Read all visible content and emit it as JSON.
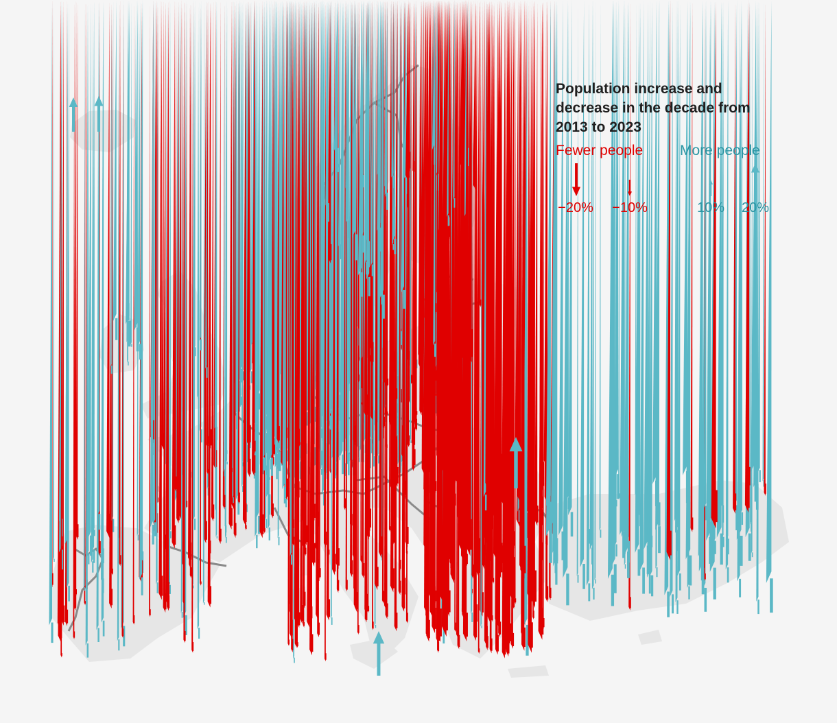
{
  "legend": {
    "title": "Population increase and decrease in the decade from 2013 to 2023",
    "fewer_label": "Fewer people",
    "more_label": "More people",
    "scale": [
      {
        "label": "−20%",
        "value": -20
      },
      {
        "label": "−10%",
        "value": -10
      },
      {
        "label": "10%",
        "value": 10
      },
      {
        "label": "20%",
        "value": 20
      }
    ]
  },
  "colors": {
    "decrease": "#e00000",
    "increase": "#5bb8c6",
    "land": "#e4e4e4",
    "border": "#8a8a8a",
    "background": "#f5f5f5"
  }
}
